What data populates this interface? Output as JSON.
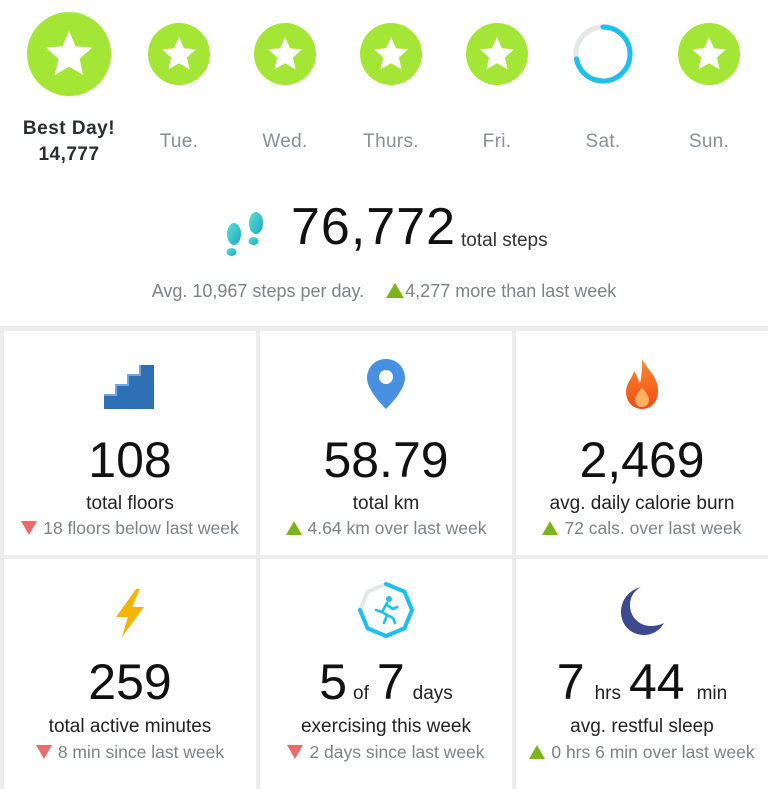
{
  "week": {
    "best_day": {
      "label": "Best Day!",
      "steps": "14,777",
      "goal_met": true
    },
    "days": [
      {
        "label": "Tue.",
        "goal_met": true
      },
      {
        "label": "Wed.",
        "goal_met": true
      },
      {
        "label": "Thurs.",
        "goal_met": true
      },
      {
        "label": "Fri.",
        "goal_met": true
      },
      {
        "label": "Sat.",
        "goal_met": false,
        "progress": 0.72
      },
      {
        "label": "Sun.",
        "goal_met": true
      }
    ],
    "colors": {
      "goal_met": "#a3e635",
      "progress": "#1cc0ee",
      "track": "#e4e6e8"
    }
  },
  "summary": {
    "icon": "footsteps-icon",
    "total_steps": "76,772",
    "total_unit": "total steps",
    "avg_text": "Avg. 10,967 steps per day.",
    "trend": "up",
    "trend_text": "4,277 more than last week"
  },
  "tiles": [
    {
      "icon": "stairs-icon",
      "value": "108",
      "label": "total floors",
      "trend": "down",
      "delta": "18 floors below last week"
    },
    {
      "icon": "location-pin-icon",
      "value": "58.79",
      "label": "total km",
      "trend": "up",
      "delta": "4.64 km over last week"
    },
    {
      "icon": "flame-icon",
      "value": "2,469",
      "label": "avg. daily calorie burn",
      "trend": "up",
      "delta": "72 cals. over last week"
    },
    {
      "icon": "lightning-icon",
      "value": "259",
      "label": "total active minutes",
      "trend": "down",
      "delta": "8 min since last week"
    },
    {
      "icon": "exercise-runner-icon",
      "value_parts": [
        "5",
        "of",
        "7",
        "days"
      ],
      "label": "exercising this week",
      "trend": "down",
      "delta": "2 days since last week",
      "progress": 0.714
    },
    {
      "icon": "moon-icon",
      "value_parts": [
        "7",
        "hrs",
        "44",
        "min"
      ],
      "label": "avg. restful sleep",
      "trend": "up",
      "delta": "0 hrs 6 min over last week"
    }
  ],
  "colors": {
    "up": "#7cb518",
    "down": "#e96b6b",
    "pin": "#4a90e2",
    "stairs": "#2f6fb3",
    "flame": "#f0561f",
    "bolt": "#f5b400",
    "moon": "#3d4a8f",
    "exercise": "#1cc0ee"
  }
}
